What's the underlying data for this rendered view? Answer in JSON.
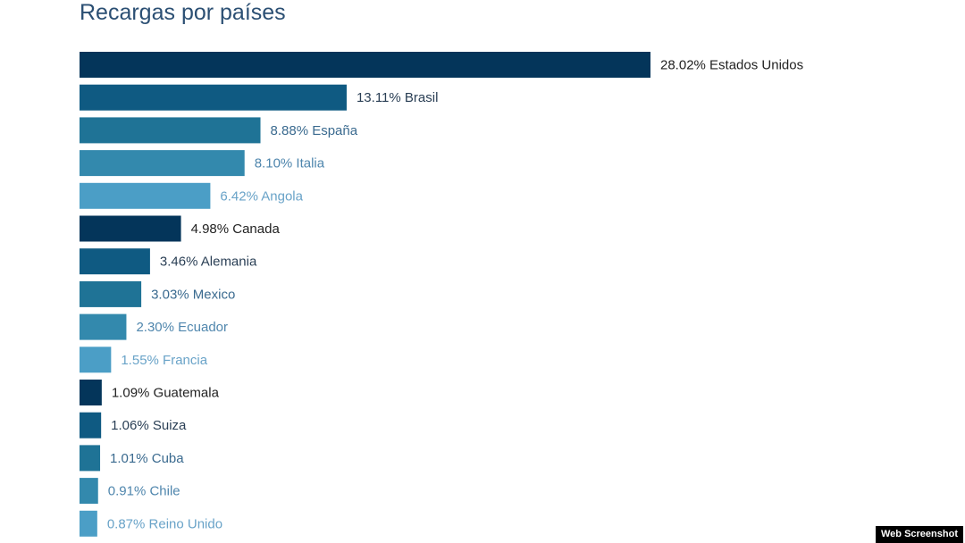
{
  "chart_data": {
    "type": "bar",
    "orientation": "horizontal",
    "title": "Recargas por países",
    "xlabel": "",
    "ylabel": "",
    "unit": "%",
    "xlim": [
      0,
      28.02
    ],
    "grid": false,
    "legend": "none",
    "categories": [
      "Estados Unidos",
      "Brasil",
      "España",
      "Italia",
      "Angola",
      "Canada",
      "Alemania",
      "Mexico",
      "Ecuador",
      "Francia",
      "Guatemala",
      "Suiza",
      "Cuba",
      "Chile",
      "Reino Unido"
    ],
    "values": [
      28.02,
      13.11,
      8.88,
      8.1,
      6.42,
      4.98,
      3.46,
      3.03,
      2.3,
      1.55,
      1.09,
      1.06,
      1.01,
      0.91,
      0.87
    ],
    "labels": [
      "28.02% Estados Unidos",
      "13.11% Brasil",
      "8.88% España",
      "8.10% Italia",
      "6.42% Angola",
      "4.98% Canada",
      "3.46% Alemania",
      "3.03% Mexico",
      "2.30% Ecuador",
      "1.55% Francia",
      "1.09% Guatemala",
      "1.06% Suiza",
      "1.01% Cuba",
      "0.91% Chile",
      "0.87% Reino Unido"
    ],
    "palette": [
      "#04355a",
      "#0f5a82",
      "#1f7396",
      "#3389ad",
      "#4b9ec6"
    ],
    "label_colors": [
      "#222222",
      "#2a3f55",
      "#3a6a8f",
      "#4f86ad",
      "#69a3c8"
    ]
  },
  "watermark": "Web Screenshot"
}
